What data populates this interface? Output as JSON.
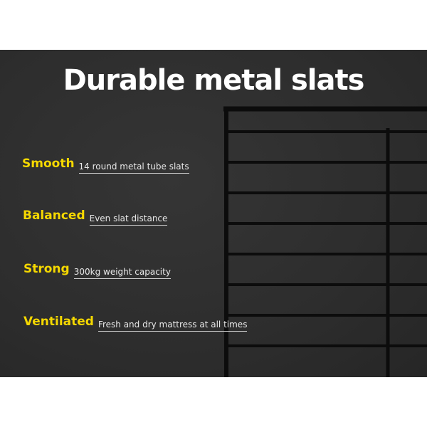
{
  "title": "Durable metal slats",
  "features": [
    {
      "label": "Smooth",
      "desc": "14 round metal tube slats"
    },
    {
      "label": "Balanced",
      "desc": "Even slat distance"
    },
    {
      "label": "Strong",
      "desc": "300kg weight capacity"
    },
    {
      "label": "Ventilated",
      "desc": "Fresh and dry mattress at all times"
    }
  ],
  "colors": {
    "accent": "#f5d800",
    "background": "#2e2e2e",
    "frame": "#0d0d0d"
  },
  "image": "black-metal-bed-frame-slats"
}
